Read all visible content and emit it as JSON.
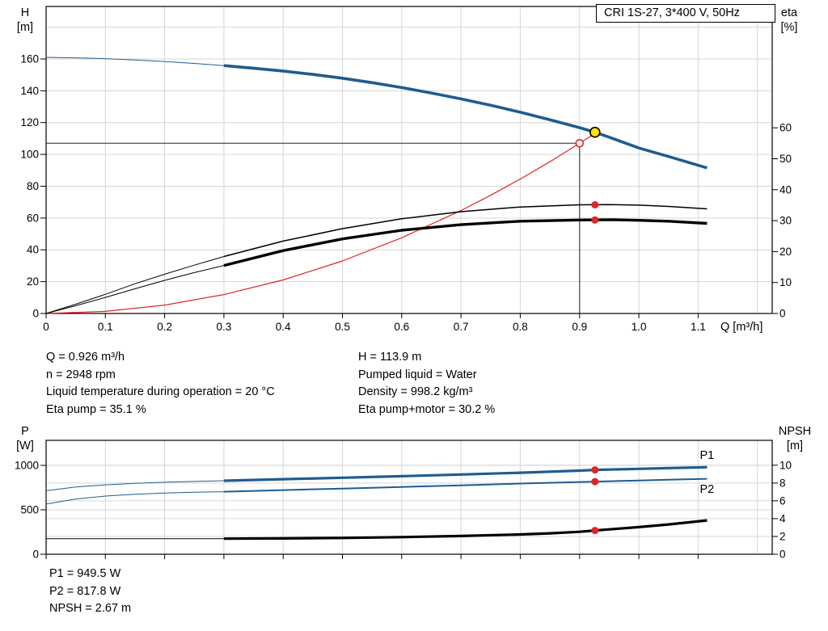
{
  "colors": {
    "curve_blue": "#1f5c8f",
    "label_blue": "#2e74b5",
    "red": "#e02424",
    "yellow": "#ffe100",
    "grid": "#d6d6d6",
    "frame": "#000000",
    "crosshair": "#222222"
  },
  "title_box": {
    "label": "CRI 1S-27, 3*400 V, 50Hz"
  },
  "top_info": {
    "left": [
      "Q = 0.926 m³/h",
      "n = 2948 rpm",
      "Liquid temperature during operation = 20 °C",
      "Eta pump = 35.1 %"
    ],
    "right": [
      "H = 113.9 m",
      "Pumped liquid = Water",
      "Density = 998.2 kg/m³",
      "Eta pump+motor = 30.2 %"
    ]
  },
  "bottom_info": [
    "P1 = 949.5 W",
    "P2 = 817.8 W",
    "NPSH = 2.67 m"
  ],
  "chart_data": [
    {
      "type": "line",
      "title": "CRI 1S-27, 3*400 V, 50Hz",
      "x_axis": {
        "label": "Q [m³/h]",
        "min": 0,
        "max": 1.225,
        "ticks": [
          0,
          0.1,
          0.2,
          0.3,
          0.4,
          0.5,
          0.6,
          0.7,
          0.8,
          0.9,
          1.0,
          1.1
        ],
        "tick_labels": [
          "0",
          "0.1",
          "0.2",
          "0.3",
          "0.4",
          "0.5",
          "0.6",
          "0.7",
          "0.8",
          "0.9",
          "1.0",
          "1.1"
        ],
        "grid": [
          0.1,
          0.2,
          0.3,
          0.4,
          0.5,
          0.6,
          0.7,
          0.8,
          0.9,
          1.0,
          1.1,
          1.2
        ]
      },
      "y_left": {
        "name": "H",
        "unit": "[m]",
        "min": 0,
        "max": 193,
        "ticks": [
          0,
          20,
          40,
          60,
          80,
          100,
          120,
          140,
          160
        ],
        "tick_labels": [
          "0",
          "20",
          "40",
          "60",
          "80",
          "100",
          "120",
          "140",
          "160"
        ],
        "grid": [
          20,
          40,
          60,
          80,
          100,
          120,
          140,
          160,
          180
        ]
      },
      "y_right": {
        "name": "eta",
        "unit": "[%]",
        "min": 0,
        "max": 99.2,
        "ticks": [
          0,
          10,
          20,
          30,
          40,
          50,
          60
        ],
        "tick_labels": [
          "0",
          "10",
          "20",
          "30",
          "40",
          "50",
          "60"
        ],
        "grid": []
      },
      "reference_lines": [
        {
          "type": "h",
          "y": 107,
          "x1": 0,
          "x2": 0.9
        },
        {
          "type": "v",
          "x": 0.9,
          "y1": 0,
          "y2": 107
        }
      ],
      "series": [
        {
          "name": "system-curve",
          "axis": "left",
          "color": "#e02424",
          "width": 1.2,
          "points": [
            [
              0,
              0
            ],
            [
              0.1,
              1.3
            ],
            [
              0.2,
              5.3
            ],
            [
              0.3,
              11.9
            ],
            [
              0.4,
              21.1
            ],
            [
              0.5,
              33.0
            ],
            [
              0.6,
              47.6
            ],
            [
              0.7,
              64.7
            ],
            [
              0.75,
              74.3
            ],
            [
              0.8,
              84.5
            ],
            [
              0.85,
              95.4
            ],
            [
              0.9,
              107.0
            ],
            [
              0.928,
              113.6
            ]
          ]
        },
        {
          "name": "eta-pump-curve-thin",
          "axis": "right",
          "color": "#000000",
          "width": 1,
          "points": [
            [
              0,
              0
            ],
            [
              0.05,
              3.0
            ],
            [
              0.1,
              6.2
            ],
            [
              0.15,
              9.6
            ],
            [
              0.2,
              12.7
            ],
            [
              0.25,
              15.6
            ],
            [
              0.3,
              18.4
            ]
          ]
        },
        {
          "name": "eta-pump-curve",
          "axis": "right",
          "color": "#000000",
          "width": 1.5,
          "points": [
            [
              0.3,
              18.4
            ],
            [
              0.4,
              23.4
            ],
            [
              0.5,
              27.4
            ],
            [
              0.6,
              30.6
            ],
            [
              0.7,
              32.9
            ],
            [
              0.8,
              34.4
            ],
            [
              0.9,
              35.1
            ],
            [
              0.95,
              35.2
            ],
            [
              1.0,
              35.0
            ],
            [
              1.05,
              34.6
            ],
            [
              1.115,
              33.8
            ]
          ]
        },
        {
          "name": "eta-pump-motor-curve-thin",
          "axis": "right",
          "color": "#000000",
          "width": 1,
          "points": [
            [
              0,
              0
            ],
            [
              0.05,
              2.5
            ],
            [
              0.1,
              5.2
            ],
            [
              0.15,
              8.0
            ],
            [
              0.2,
              10.7
            ],
            [
              0.25,
              13.2
            ],
            [
              0.3,
              15.5
            ]
          ]
        },
        {
          "name": "eta-pump-motor-curve",
          "axis": "right",
          "color": "#000000",
          "width": 3.4,
          "points": [
            [
              0.3,
              15.5
            ],
            [
              0.4,
              20.3
            ],
            [
              0.5,
              24.1
            ],
            [
              0.6,
              26.9
            ],
            [
              0.7,
              28.7
            ],
            [
              0.8,
              29.8
            ],
            [
              0.9,
              30.2
            ],
            [
              0.95,
              30.3
            ],
            [
              1.0,
              30.1
            ],
            [
              1.05,
              29.8
            ],
            [
              1.115,
              29.1
            ]
          ]
        },
        {
          "name": "h-q-curve-thin",
          "axis": "left",
          "color": "#1f5c8f",
          "width": 1,
          "points": [
            [
              0,
              161
            ],
            [
              0.05,
              160.7
            ],
            [
              0.1,
              160.2
            ],
            [
              0.15,
              159.4
            ],
            [
              0.2,
              158.4
            ],
            [
              0.25,
              157.2
            ],
            [
              0.3,
              155.8
            ]
          ]
        },
        {
          "name": "h-q-curve",
          "axis": "left",
          "color": "#1f5c8f",
          "width": 3.6,
          "points": [
            [
              0.3,
              155.8
            ],
            [
              0.35,
              154.2
            ],
            [
              0.4,
              152.4
            ],
            [
              0.45,
              150.3
            ],
            [
              0.5,
              147.9
            ],
            [
              0.55,
              145.1
            ],
            [
              0.6,
              142.0
            ],
            [
              0.65,
              138.6
            ],
            [
              0.7,
              134.9
            ],
            [
              0.75,
              130.9
            ],
            [
              0.8,
              126.5
            ],
            [
              0.85,
              121.8
            ],
            [
              0.9,
              116.8
            ],
            [
              0.926,
              113.9
            ],
            [
              0.95,
              110.8
            ],
            [
              1.0,
              104.0
            ],
            [
              1.05,
              98.7
            ],
            [
              1.115,
              91.5
            ]
          ]
        }
      ],
      "markers": [
        {
          "name": "requested-duty-point-marker",
          "x": 0.9,
          "y": 107,
          "axis": "left",
          "r": 4.5,
          "fill": "#ffffff",
          "stroke": "#e02424"
        },
        {
          "name": "duty-point-marker",
          "x": 0.926,
          "y": 113.9,
          "axis": "left",
          "r": 6,
          "fill": "#ffe100",
          "stroke": "#000000"
        },
        {
          "name": "eta-pump-duty-marker",
          "x": 0.926,
          "y": 35.1,
          "axis": "right",
          "r": 4.5,
          "fill": "#e02424"
        },
        {
          "name": "eta-pump-motor-duty-marker",
          "x": 0.926,
          "y": 30.2,
          "axis": "right",
          "r": 4.5,
          "fill": "#e02424"
        }
      ],
      "annotations": []
    },
    {
      "type": "line",
      "title": "",
      "x_axis": {
        "label": "",
        "min": 0,
        "max": 1.225,
        "ticks": [
          0,
          0.1,
          0.2,
          0.3,
          0.4,
          0.5,
          0.6,
          0.7,
          0.8,
          0.9,
          1.0,
          1.1
        ],
        "tick_labels": [],
        "grid": [
          0.1,
          0.2,
          0.3,
          0.4,
          0.5,
          0.6,
          0.7,
          0.8,
          0.9,
          1.0,
          1.1,
          1.2
        ]
      },
      "y_left": {
        "name": "P",
        "unit": "[W]",
        "min": 0,
        "max": 1282,
        "ticks": [
          0,
          500,
          1000
        ],
        "tick_labels": [
          "0",
          "500",
          "1000"
        ],
        "grid": [
          500,
          1000
        ]
      },
      "y_right": {
        "name": "NPSH",
        "unit": "[m]",
        "min": 0,
        "max": 12.8,
        "ticks": [
          0,
          2,
          4,
          6,
          8,
          10
        ],
        "tick_labels": [
          "0",
          "2",
          "4",
          "6",
          "8",
          "10"
        ],
        "grid": [
          2,
          4,
          6,
          8,
          10
        ]
      },
      "reference_lines": [],
      "series": [
        {
          "name": "p2-curve-thin",
          "axis": "left",
          "color": "#1f5c8f",
          "width": 1,
          "points": [
            [
              0,
              565
            ],
            [
              0.05,
              622
            ],
            [
              0.1,
              655
            ],
            [
              0.15,
              676
            ],
            [
              0.2,
              689
            ],
            [
              0.25,
              697
            ],
            [
              0.3,
              704
            ]
          ]
        },
        {
          "name": "p2-curve",
          "axis": "left",
          "color": "#1f5c8f",
          "width": 2,
          "points": [
            [
              0.3,
              704
            ],
            [
              0.4,
              722
            ],
            [
              0.5,
              739
            ],
            [
              0.6,
              757
            ],
            [
              0.7,
              776
            ],
            [
              0.8,
              796
            ],
            [
              0.9,
              813
            ],
            [
              0.926,
              817.8
            ],
            [
              1.0,
              830
            ],
            [
              1.05,
              838
            ],
            [
              1.115,
              849
            ]
          ]
        },
        {
          "name": "p1-curve-thin",
          "axis": "left",
          "color": "#1f5c8f",
          "width": 1,
          "points": [
            [
              0,
              715
            ],
            [
              0.05,
              757
            ],
            [
              0.1,
              781
            ],
            [
              0.15,
              798
            ],
            [
              0.2,
              810
            ],
            [
              0.25,
              819
            ],
            [
              0.3,
              827
            ]
          ]
        },
        {
          "name": "p1-curve",
          "axis": "left",
          "color": "#1f5c8f",
          "width": 3.2,
          "points": [
            [
              0.3,
              827
            ],
            [
              0.4,
              845
            ],
            [
              0.5,
              861
            ],
            [
              0.6,
              878
            ],
            [
              0.7,
              897
            ],
            [
              0.8,
              917
            ],
            [
              0.9,
              941
            ],
            [
              0.926,
              949.5
            ],
            [
              1.0,
              961
            ],
            [
              1.05,
              969
            ],
            [
              1.115,
              979
            ]
          ]
        },
        {
          "name": "npsh-curve-thin",
          "axis": "right",
          "color": "#000000",
          "width": 1,
          "points": [
            [
              0,
              1.75
            ],
            [
              0.15,
              1.75
            ],
            [
              0.3,
              1.75
            ]
          ]
        },
        {
          "name": "npsh-curve",
          "axis": "right",
          "color": "#000000",
          "width": 3.2,
          "points": [
            [
              0.3,
              1.75
            ],
            [
              0.4,
              1.78
            ],
            [
              0.5,
              1.83
            ],
            [
              0.6,
              1.92
            ],
            [
              0.7,
              2.05
            ],
            [
              0.8,
              2.22
            ],
            [
              0.85,
              2.35
            ],
            [
              0.9,
              2.52
            ],
            [
              0.926,
              2.67
            ],
            [
              0.95,
              2.8
            ],
            [
              1.0,
              3.05
            ],
            [
              1.05,
              3.35
            ],
            [
              1.115,
              3.8
            ]
          ]
        }
      ],
      "markers": [
        {
          "name": "p1-duty-marker",
          "x": 0.926,
          "y": 949.5,
          "axis": "left",
          "r": 4.5,
          "fill": "#e02424"
        },
        {
          "name": "p2-duty-marker",
          "x": 0.926,
          "y": 817.8,
          "axis": "left",
          "r": 4.5,
          "fill": "#e02424"
        },
        {
          "name": "npsh-duty-marker",
          "x": 0.926,
          "y": 2.67,
          "axis": "right",
          "r": 4.5,
          "fill": "#e02424"
        }
      ],
      "annotations": [
        {
          "text": "P1",
          "x": 1.115,
          "y": 1075,
          "axis": "left",
          "color": "#2e74b5"
        },
        {
          "text": "P2",
          "x": 1.115,
          "y": 690,
          "axis": "left",
          "color": "#2e74b5"
        }
      ]
    }
  ]
}
